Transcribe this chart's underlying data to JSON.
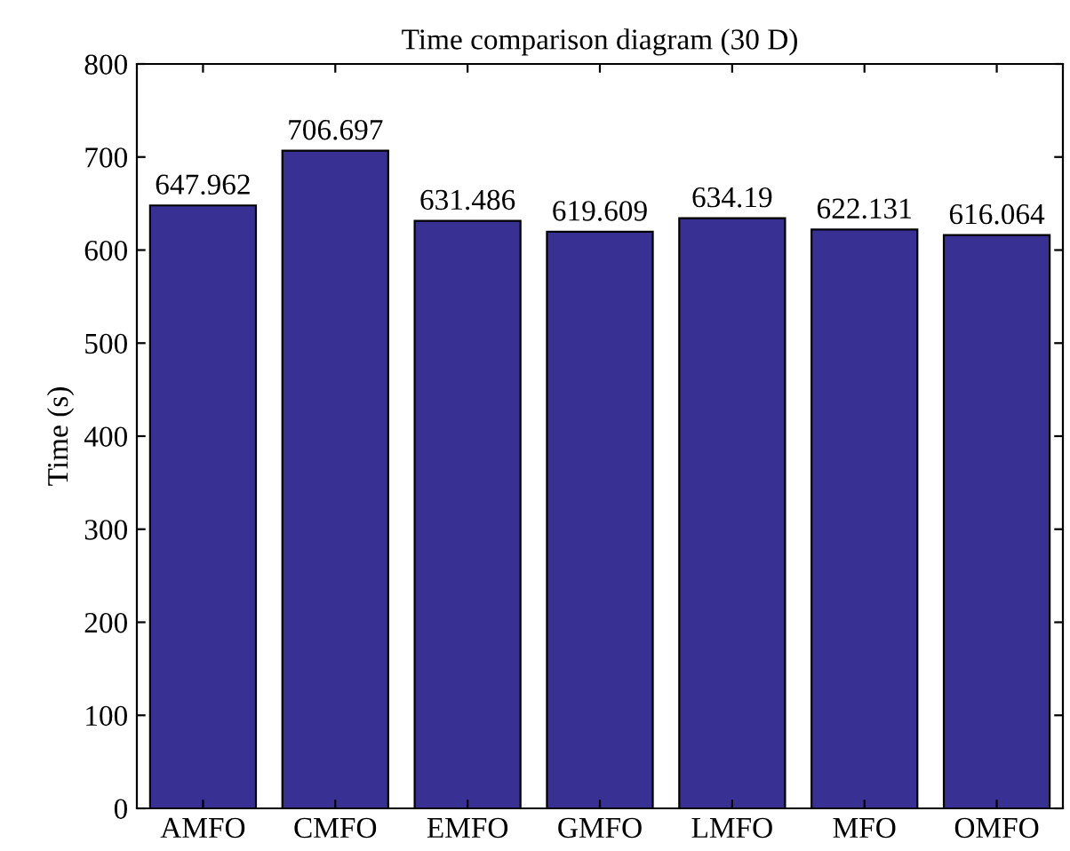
{
  "chart_data": {
    "type": "bar",
    "title": "Time comparison diagram (30 D)",
    "ylabel": "Time (s)",
    "categories": [
      "AMFO",
      "CMFO",
      "EMFO",
      "GMFO",
      "LMFO",
      "MFO",
      "OMFO"
    ],
    "values": [
      647.962,
      706.697,
      631.486,
      619.609,
      634.19,
      622.131,
      616.064
    ],
    "color": "#383092",
    "ylim": [
      0,
      800
    ],
    "yticks": [
      0,
      100,
      200,
      300,
      400,
      500,
      600,
      700,
      800
    ],
    "data_labels": true,
    "grid": false,
    "legend": false
  }
}
